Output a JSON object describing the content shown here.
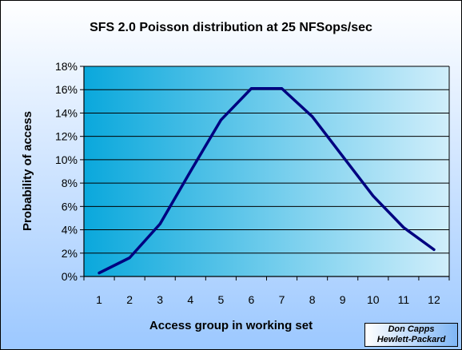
{
  "chart_data": {
    "type": "line",
    "title": "SFS 2.0 Poisson distribution at 25 NFSops/sec",
    "xlabel": "Access group in working set",
    "ylabel": "Probability of access",
    "categories": [
      "1",
      "2",
      "3",
      "4",
      "5",
      "6",
      "7",
      "8",
      "9",
      "10",
      "11",
      "12"
    ],
    "values": [
      0.3,
      1.6,
      4.5,
      9.0,
      13.4,
      16.1,
      16.1,
      13.7,
      10.3,
      6.9,
      4.2,
      2.3
    ],
    "ylim": [
      0,
      18
    ],
    "yticks": [
      "0%",
      "2%",
      "4%",
      "6%",
      "8%",
      "10%",
      "12%",
      "14%",
      "16%",
      "18%"
    ],
    "grid": true,
    "line_color": "#000080",
    "plot_background": [
      "#0aa8dc",
      "#d0eefb"
    ]
  },
  "credit": {
    "line1": "Don Capps",
    "line2": "Hewlett-Packard"
  }
}
